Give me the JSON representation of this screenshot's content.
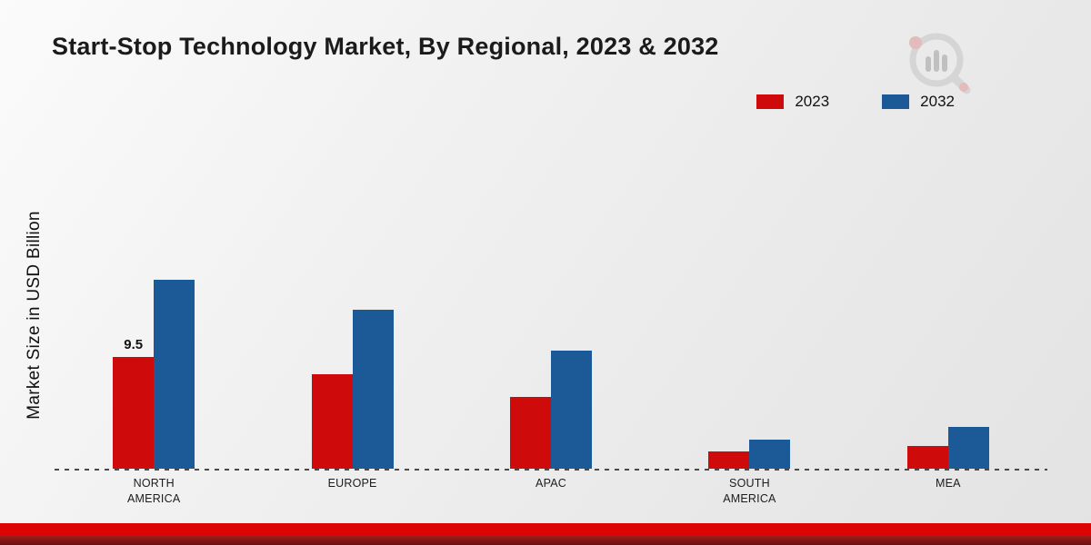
{
  "page": {
    "title": "Start-Stop Technology Market, By Regional, 2023 & 2032",
    "ylabel": "Market Size in USD Billion"
  },
  "colors": {
    "series_2023": "#cf0a0a",
    "series_2032": "#1b5a96",
    "footer_stripe": "#dd0404"
  },
  "legend": {
    "items": [
      {
        "label": "2023",
        "color": "#cf0a0a"
      },
      {
        "label": "2032",
        "color": "#1b5a96"
      }
    ]
  },
  "logo": {
    "name": "market-research-logo"
  },
  "chart_data": {
    "type": "bar",
    "title": "Start-Stop Technology Market, By Regional, 2023 & 2032",
    "xlabel": "",
    "ylabel": "Market Size in USD Billion",
    "ylim": [
      0,
      18
    ],
    "grid": false,
    "legend_position": "top-right",
    "baseline_style": "dashed",
    "categories": [
      "NORTH AMERICA",
      "EUROPE",
      "APAC",
      "SOUTH AMERICA",
      "MEA"
    ],
    "series": [
      {
        "name": "2023",
        "color": "#cf0a0a",
        "values": [
          9.5,
          8.1,
          6.1,
          1.5,
          1.9
        ]
      },
      {
        "name": "2032",
        "color": "#1b5a96",
        "values": [
          16.1,
          13.6,
          10.1,
          2.5,
          3.6
        ]
      }
    ],
    "value_labels": [
      {
        "series": "2023",
        "category": "NORTH AMERICA",
        "text": "9.5"
      }
    ]
  }
}
